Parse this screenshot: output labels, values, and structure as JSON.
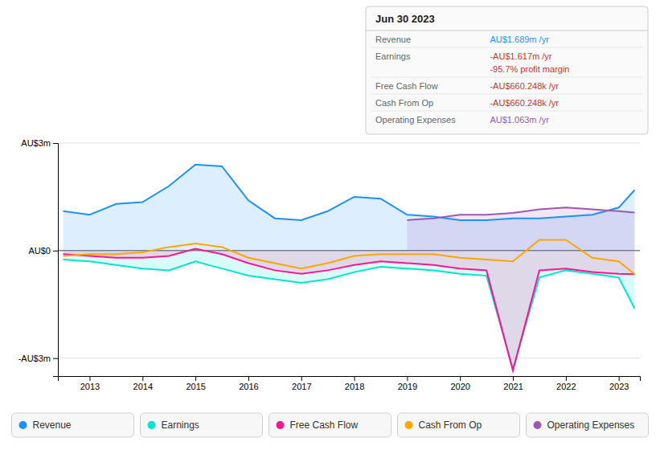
{
  "chart_data": {
    "type": "line",
    "title": "Jun 30 2023",
    "x": [
      2012.5,
      2013,
      2013.5,
      2014,
      2014.5,
      2015,
      2015.5,
      2016,
      2016.5,
      2017,
      2017.5,
      2018,
      2018.5,
      2019,
      2019.5,
      2020,
      2020.5,
      2021,
      2021.5,
      2022,
      2022.5,
      2023,
      2023.3
    ],
    "series": [
      {
        "name": "Revenue",
        "color": "#1e90ff",
        "type": "area",
        "values": [
          1.1,
          1.0,
          1.3,
          1.35,
          1.8,
          2.4,
          2.35,
          1.4,
          0.9,
          0.85,
          1.1,
          1.5,
          1.45,
          1.0,
          0.95,
          0.85,
          0.85,
          0.9,
          0.9,
          0.95,
          1.0,
          1.2,
          1.689
        ]
      },
      {
        "name": "Earnings",
        "color": "#00e5cc",
        "type": "area",
        "values": [
          -0.25,
          -0.3,
          -0.4,
          -0.5,
          -0.55,
          -0.3,
          -0.5,
          -0.7,
          -0.8,
          -0.9,
          -0.8,
          -0.6,
          -0.45,
          -0.5,
          -0.55,
          -0.65,
          -0.7,
          -3.3,
          -0.75,
          -0.55,
          -0.65,
          -0.75,
          -1.617
        ]
      },
      {
        "name": "Free Cash Flow",
        "color": "#ff1493",
        "type": "area",
        "values": [
          -0.1,
          -0.15,
          -0.2,
          -0.2,
          -0.15,
          0.05,
          -0.1,
          -0.35,
          -0.55,
          -0.65,
          -0.55,
          -0.4,
          -0.3,
          -0.35,
          -0.4,
          -0.5,
          -0.55,
          -3.35,
          -0.55,
          -0.5,
          -0.6,
          -0.65,
          -0.66
        ]
      },
      {
        "name": "Cash From Op",
        "color": "#ffa500",
        "type": "line",
        "values": [
          -0.15,
          -0.1,
          -0.1,
          -0.05,
          0.1,
          0.2,
          0.1,
          -0.2,
          -0.35,
          -0.5,
          -0.35,
          -0.15,
          -0.1,
          -0.1,
          -0.1,
          -0.2,
          -0.25,
          -0.3,
          0.3,
          0.3,
          -0.2,
          -0.3,
          -0.66
        ]
      },
      {
        "name": "Operating Expenses",
        "color": "#9b59b6",
        "type": "area",
        "values": [
          null,
          null,
          null,
          null,
          null,
          null,
          null,
          null,
          null,
          null,
          null,
          null,
          null,
          0.85,
          0.9,
          1.0,
          1.0,
          1.05,
          1.15,
          1.2,
          1.15,
          1.1,
          1.063
        ]
      }
    ],
    "xlim": [
      2012.4,
      2023.4
    ],
    "xticks": [
      2013,
      2014,
      2015,
      2016,
      2017,
      2018,
      2019,
      2020,
      2021,
      2022,
      2023
    ],
    "ylim": [
      -3.5,
      3.0
    ],
    "yticks": [
      {
        "value": -3,
        "label": "-AU$3m"
      },
      {
        "value": 0,
        "label": "AU$0"
      },
      {
        "value": 3,
        "label": "AU$3m"
      }
    ],
    "grid": true,
    "legend": "bottom",
    "annotations": [
      {
        "text": [
          "Revenue",
          "AU$1.689m /yr"
        ],
        "color": "#1e90ff"
      },
      {
        "text": [
          "Earnings",
          "-AU$1.617m /yr",
          "-95.7% profit margin"
        ],
        "color": "#cc3333"
      },
      {
        "text": [
          "Free Cash Flow",
          "-AU$660.248k /yr"
        ],
        "color": "#cc3333"
      },
      {
        "text": [
          "Cash From Op",
          "-AU$660.248k /yr"
        ],
        "color": "#cc3333"
      },
      {
        "text": [
          "Operating Expenses",
          "AU$1.063m /yr"
        ],
        "color": "#9b59b6"
      }
    ]
  }
}
